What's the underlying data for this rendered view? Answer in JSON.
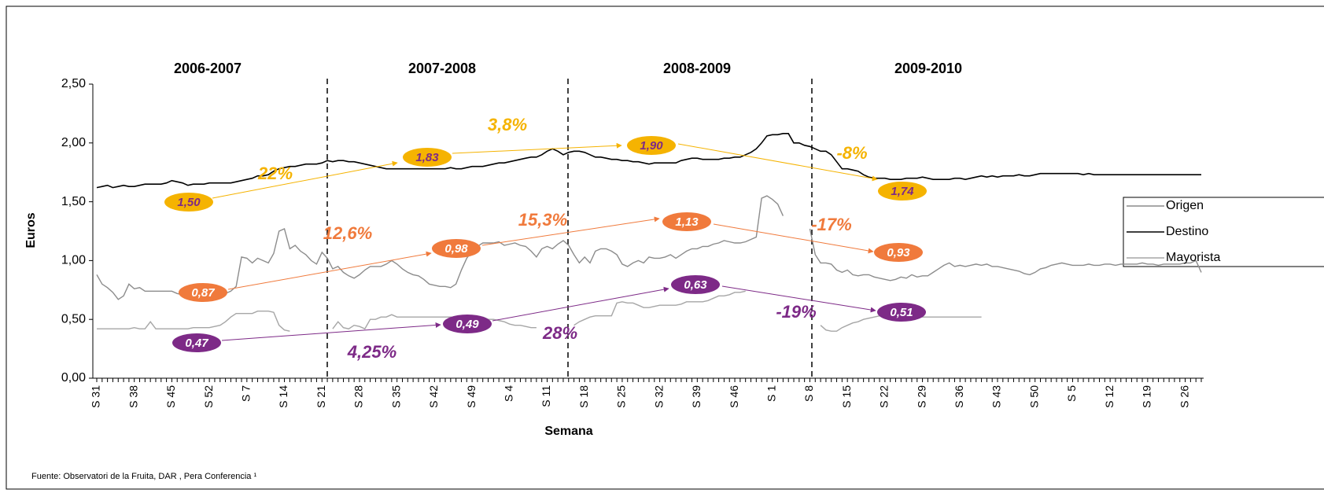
{
  "chart_data": {
    "type": "line",
    "seasons": [
      "2006-2007",
      "2007-2008",
      "2008-2009",
      "2009-2010"
    ],
    "y_label": "Euros",
    "x_label": "Semana",
    "source": "Fuente: Observatori de la Fruita, DAR , Pera Conferencia ¹",
    "ylim": [
      0,
      2.5
    ],
    "yticks": [
      {
        "value": 0,
        "label": "0,00"
      },
      {
        "value": 0.5,
        "label": "0,50"
      },
      {
        "value": 1,
        "label": "1,00"
      },
      {
        "value": 1.5,
        "label": "1,50"
      },
      {
        "value": 2,
        "label": "2,00"
      },
      {
        "value": 2.5,
        "label": "2,50"
      }
    ],
    "legend": "right",
    "categories": [
      "S 31",
      null,
      null,
      null,
      null,
      null,
      null,
      "S 38",
      null,
      null,
      null,
      null,
      null,
      null,
      "S 45",
      null,
      null,
      null,
      null,
      null,
      null,
      "S 52",
      null,
      null,
      null,
      null,
      null,
      null,
      "S 7",
      null,
      null,
      null,
      null,
      null,
      null,
      "S 14",
      null,
      null,
      null,
      null,
      null,
      null,
      "S 21",
      null,
      null,
      null,
      null,
      null,
      null,
      "S 28",
      null,
      null,
      null,
      null,
      null,
      null,
      "S 35",
      null,
      null,
      null,
      null,
      null,
      null,
      "S 42",
      null,
      null,
      null,
      null,
      null,
      null,
      "S 49",
      null,
      null,
      null,
      null,
      null,
      null,
      "S 4",
      null,
      null,
      null,
      null,
      null,
      null,
      "S 11",
      null,
      null,
      null,
      null,
      null,
      null,
      "S 18",
      null,
      null,
      null,
      null,
      null,
      null,
      "S 25",
      null,
      null,
      null,
      null,
      null,
      null,
      "S 32",
      null,
      null,
      null,
      null,
      null,
      null,
      "S 39",
      null,
      null,
      null,
      null,
      null,
      null,
      "S 46",
      null,
      null,
      null,
      null,
      null,
      null,
      "S 1",
      null,
      null,
      null,
      null,
      null,
      null,
      "S 8",
      null,
      null,
      null,
      null,
      null,
      null,
      "S 15",
      null,
      null,
      null,
      null,
      null,
      null,
      "S 22",
      null,
      null,
      null,
      null,
      null,
      null,
      "S 29",
      null,
      null,
      null,
      null,
      null,
      null,
      "S 36",
      null,
      null,
      null,
      null,
      null,
      null,
      "S 43",
      null,
      null,
      null,
      null,
      null,
      null,
      "S 50",
      null,
      null,
      null,
      null,
      null,
      null,
      "S 5",
      null,
      null,
      null,
      null,
      null,
      null,
      "S 12",
      null,
      null,
      null,
      null,
      null,
      null,
      "S 19",
      null,
      null,
      null,
      null,
      null,
      null,
      "S 26",
      null,
      null,
      null
    ],
    "series": [
      {
        "name": "Origen",
        "color": "#8c8c8c",
        "values": [
          0.88,
          0.8,
          0.77,
          0.73,
          0.67,
          0.7,
          0.8,
          0.76,
          0.77,
          0.74,
          0.74,
          0.74,
          0.74,
          0.74,
          0.74,
          0.72,
          0.71,
          0.7,
          0.7,
          0.69,
          0.68,
          0.72,
          0.76,
          0.78,
          0.72,
          0.74,
          0.78,
          1.03,
          1.02,
          0.98,
          1.02,
          1.0,
          0.98,
          1.06,
          1.25,
          1.27,
          1.1,
          1.13,
          1.08,
          1.05,
          1.0,
          0.97,
          1.07,
          1.02,
          0.93,
          0.95,
          0.9,
          0.87,
          0.85,
          0.88,
          0.92,
          0.95,
          0.95,
          0.95,
          0.97,
          1.0,
          0.97,
          0.93,
          0.9,
          0.88,
          0.87,
          0.84,
          0.8,
          0.79,
          0.78,
          0.78,
          0.77,
          0.8,
          0.92,
          1.02,
          1.08,
          1.12,
          1.15,
          1.15,
          1.15,
          1.16,
          1.13,
          1.14,
          1.15,
          1.13,
          1.12,
          1.08,
          1.03,
          1.1,
          1.12,
          1.1,
          1.14,
          1.17,
          1.13,
          1.05,
          0.98,
          1.03,
          0.98,
          1.08,
          1.1,
          1.1,
          1.08,
          1.05,
          0.97,
          0.95,
          0.98,
          1.0,
          0.98,
          1.03,
          1.02,
          1.02,
          1.03,
          1.05,
          1.02,
          1.05,
          1.08,
          1.1,
          1.1,
          1.12,
          1.12,
          1.14,
          1.15,
          1.17,
          1.16,
          1.15,
          1.15,
          1.16,
          1.18,
          1.2,
          1.53,
          1.55,
          1.52,
          1.48,
          1.38,
          null,
          null,
          null,
          null,
          1.27,
          1.05,
          0.98,
          0.98,
          0.97,
          0.92,
          0.9,
          0.92,
          0.88,
          0.87,
          0.88,
          0.88,
          0.86,
          0.85,
          0.84,
          0.83,
          0.84,
          0.86,
          0.85,
          0.88,
          0.86,
          0.87,
          0.87,
          0.9,
          0.93,
          0.96,
          0.98,
          0.95,
          0.96,
          0.95,
          0.96,
          0.97,
          0.96,
          0.97,
          0.95,
          0.95,
          0.94,
          0.93,
          0.92,
          0.91,
          0.89,
          0.88,
          0.9,
          0.93,
          0.94,
          0.96,
          0.97,
          0.98,
          0.97,
          0.96,
          0.96,
          0.96,
          0.97,
          0.96,
          0.96,
          0.97,
          0.97,
          0.96,
          0.97,
          0.97,
          0.97,
          0.97,
          0.98,
          0.97,
          0.97,
          0.96,
          0.97,
          0.97,
          0.97,
          0.97,
          0.98,
          0.98,
          1.0,
          0.9
        ]
      },
      {
        "name": "Destino",
        "color": "#000000",
        "values": [
          1.62,
          1.63,
          1.64,
          1.62,
          1.63,
          1.64,
          1.63,
          1.63,
          1.64,
          1.65,
          1.65,
          1.65,
          1.65,
          1.66,
          1.68,
          1.67,
          1.66,
          1.64,
          1.65,
          1.65,
          1.65,
          1.66,
          1.66,
          1.66,
          1.66,
          1.66,
          1.67,
          1.68,
          1.69,
          1.7,
          1.72,
          1.72,
          1.73,
          1.76,
          1.78,
          1.79,
          1.8,
          1.8,
          1.81,
          1.82,
          1.82,
          1.82,
          1.83,
          1.85,
          1.84,
          1.85,
          1.85,
          1.84,
          1.84,
          1.83,
          1.82,
          1.81,
          1.8,
          1.79,
          1.78,
          1.78,
          1.78,
          1.78,
          1.78,
          1.78,
          1.78,
          1.78,
          1.78,
          1.78,
          1.78,
          1.78,
          1.79,
          1.78,
          1.78,
          1.79,
          1.8,
          1.8,
          1.8,
          1.81,
          1.82,
          1.83,
          1.83,
          1.84,
          1.85,
          1.86,
          1.87,
          1.88,
          1.88,
          1.9,
          1.93,
          1.95,
          1.93,
          1.9,
          1.92,
          1.93,
          1.93,
          1.92,
          1.9,
          1.88,
          1.88,
          1.87,
          1.86,
          1.86,
          1.85,
          1.85,
          1.84,
          1.84,
          1.83,
          1.82,
          1.83,
          1.83,
          1.83,
          1.83,
          1.83,
          1.85,
          1.86,
          1.87,
          1.87,
          1.86,
          1.86,
          1.86,
          1.86,
          1.87,
          1.87,
          1.88,
          1.88,
          1.9,
          1.92,
          1.95,
          2.0,
          2.06,
          2.07,
          2.07,
          2.08,
          2.08,
          2.0,
          2.0,
          1.98,
          1.97,
          1.95,
          1.93,
          1.93,
          1.9,
          1.84,
          1.78,
          1.78,
          1.77,
          1.76,
          1.73,
          1.71,
          1.7,
          1.7,
          1.7,
          1.69,
          1.69,
          1.69,
          1.7,
          1.7,
          1.7,
          1.71,
          1.7,
          1.69,
          1.69,
          1.69,
          1.69,
          1.7,
          1.7,
          1.69,
          1.7,
          1.71,
          1.72,
          1.71,
          1.72,
          1.71,
          1.72,
          1.72,
          1.72,
          1.73,
          1.72,
          1.72,
          1.73,
          1.74,
          1.74,
          1.74,
          1.74,
          1.74,
          1.74,
          1.74,
          1.74,
          1.73,
          1.74,
          1.73,
          1.73,
          1.73,
          1.73,
          1.73,
          1.73,
          1.73,
          1.73,
          1.73,
          1.73,
          1.73,
          1.73,
          1.73,
          1.73,
          1.73,
          1.73,
          1.73,
          1.73,
          1.73,
          1.73,
          1.73
        ]
      },
      {
        "name": "Mayorista",
        "color": "#a6a6a6",
        "values": [
          0.42,
          0.42,
          0.42,
          0.42,
          0.42,
          0.42,
          0.42,
          0.43,
          0.42,
          0.42,
          0.48,
          0.42,
          0.42,
          0.42,
          0.42,
          0.42,
          0.42,
          0.42,
          0.43,
          0.43,
          0.43,
          0.43,
          0.44,
          0.45,
          0.48,
          0.52,
          0.55,
          0.55,
          0.55,
          0.55,
          0.57,
          0.57,
          0.57,
          0.56,
          0.45,
          0.41,
          0.4,
          null,
          null,
          null,
          null,
          null,
          null,
          null,
          0.42,
          0.48,
          0.43,
          0.42,
          0.45,
          0.44,
          0.42,
          0.5,
          0.5,
          0.52,
          0.52,
          0.54,
          0.52,
          0.52,
          0.52,
          0.52,
          0.52,
          0.52,
          0.52,
          0.52,
          0.52,
          0.52,
          0.52,
          0.52,
          0.52,
          0.52,
          0.52,
          0.52,
          0.52,
          0.5,
          0.5,
          0.49,
          0.48,
          0.46,
          0.45,
          0.45,
          0.44,
          0.43,
          0.43,
          null,
          null,
          null,
          null,
          null,
          null,
          0.45,
          0.48,
          0.5,
          0.52,
          0.53,
          0.53,
          0.53,
          0.53,
          0.64,
          0.65,
          0.64,
          0.64,
          0.62,
          0.6,
          0.6,
          0.61,
          0.62,
          0.62,
          0.62,
          0.62,
          0.63,
          0.65,
          0.65,
          0.65,
          0.65,
          0.66,
          0.68,
          0.7,
          0.7,
          0.71,
          0.73,
          0.73,
          0.74,
          null,
          null,
          null,
          null,
          null,
          null,
          null,
          null,
          null,
          null,
          null,
          null,
          null,
          0.45,
          0.41,
          0.4,
          0.4,
          0.43,
          0.45,
          0.47,
          0.48,
          0.5,
          0.51,
          0.52,
          0.53,
          0.54,
          0.52,
          0.52,
          0.52,
          0.52,
          0.52,
          0.52,
          0.52,
          0.52,
          0.52,
          0.52,
          0.52,
          0.52,
          0.52,
          0.52,
          0.52,
          0.52,
          0.52,
          0.52,
          null,
          null,
          null,
          null,
          null,
          null,
          null,
          null,
          null,
          null,
          null,
          null,
          null,
          null,
          null,
          null,
          null,
          null,
          null,
          null,
          null,
          null,
          null,
          null,
          null,
          null,
          null,
          null,
          null,
          null,
          null,
          null,
          null,
          null,
          null,
          null,
          null,
          null,
          null,
          null,
          null
        ]
      }
    ],
    "annotations": [
      {
        "text": "1,50",
        "color": "#f5b301",
        "text_color": "#7d2a87"
      },
      {
        "text": "1,83",
        "color": "#f5b301",
        "text_color": "#7d2a87"
      },
      {
        "text": "1,90",
        "color": "#f5b301",
        "text_color": "#7d2a87"
      },
      {
        "text": "1,74",
        "color": "#f5b301",
        "text_color": "#7d2a87"
      },
      {
        "text": "0,87",
        "color": "#f07a3c",
        "text_color": "#ffffff"
      },
      {
        "text": "0,98",
        "color": "#f07a3c",
        "text_color": "#ffffff"
      },
      {
        "text": "1,13",
        "color": "#f07a3c",
        "text_color": "#ffffff"
      },
      {
        "text": "0,93",
        "color": "#f07a3c",
        "text_color": "#ffffff"
      },
      {
        "text": "0,47",
        "color": "#7d2a87",
        "text_color": "#ffffff"
      },
      {
        "text": "0,49",
        "color": "#7d2a87",
        "text_color": "#ffffff"
      },
      {
        "text": "0,63",
        "color": "#7d2a87",
        "text_color": "#ffffff"
      },
      {
        "text": "0,51",
        "color": "#7d2a87",
        "text_color": "#ffffff"
      }
    ],
    "changes": [
      {
        "text": "22%",
        "color": "#f5b301"
      },
      {
        "text": "3,8%",
        "color": "#f5b301"
      },
      {
        "text": "-8%",
        "color": "#f5b301"
      },
      {
        "text": "12,6%",
        "color": "#f07a3c"
      },
      {
        "text": "15,3%",
        "color": "#f07a3c"
      },
      {
        "text": "-17%",
        "color": "#f07a3c"
      },
      {
        "text": "4,25%",
        "color": "#7d2a87"
      },
      {
        "text": "28%",
        "color": "#7d2a87"
      },
      {
        "text": "-19%",
        "color": "#7d2a87"
      }
    ]
  }
}
